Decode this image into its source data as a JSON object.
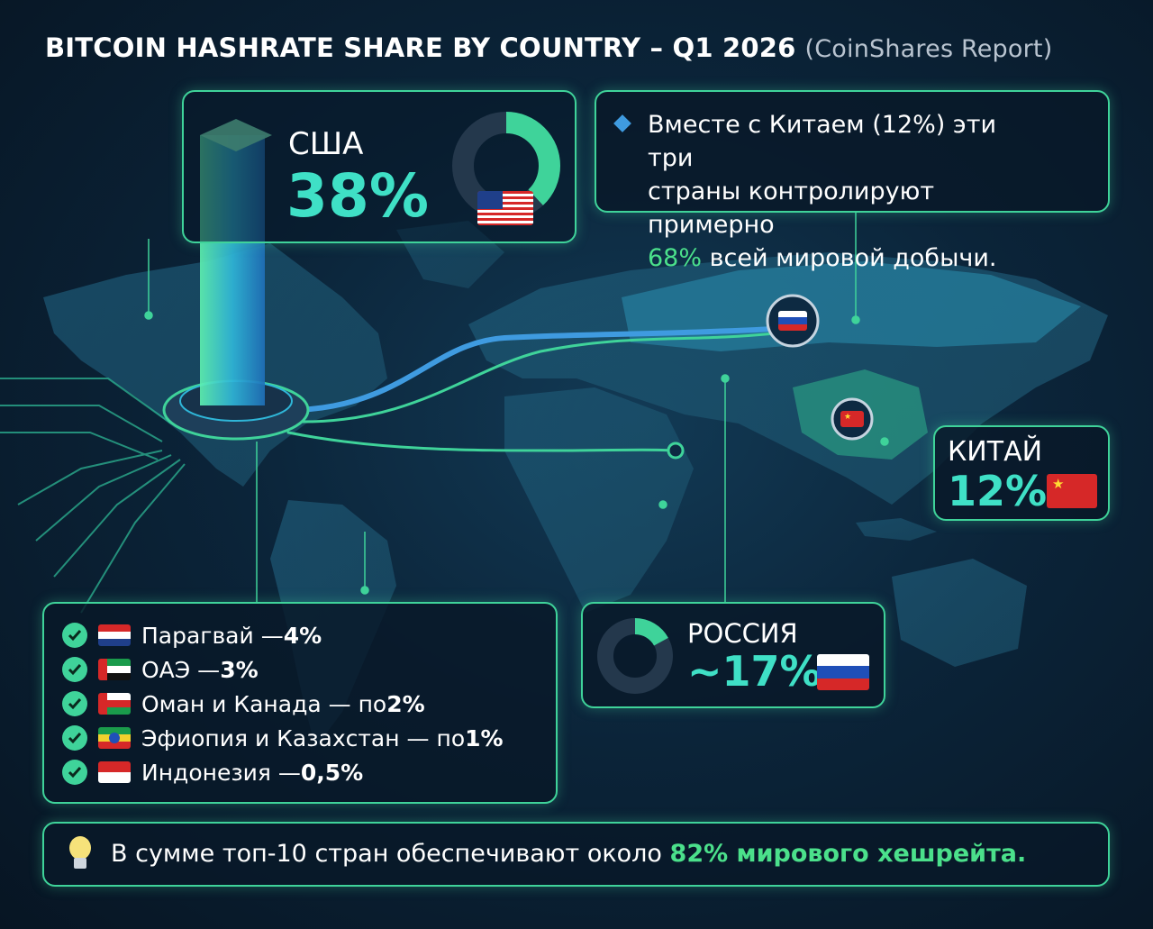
{
  "header": {
    "title": "BITCOIN HASHRATE SHARE BY COUNTRY – Q1 2026",
    "subtitle": "(CoinShares Report)"
  },
  "usa": {
    "name": "США",
    "value": "38%",
    "share": 38,
    "flag": "us-flag"
  },
  "china": {
    "name": "КИТАЙ",
    "value": "12%",
    "share": 12,
    "flag": "china-flag"
  },
  "russia": {
    "name": "РОССИЯ",
    "value": "~17%",
    "share": 17,
    "flag": "russia-flag"
  },
  "note": {
    "line1": "Вместе с Китаем (12%) эти три",
    "line2": "страны контролируют примерно",
    "highlight": "68%",
    "line3_rest": " всей мировой добычи."
  },
  "list": [
    {
      "label": "Парагвай — ",
      "value": "4%",
      "flag": "paraguay-flag"
    },
    {
      "label": "ОАЭ — ",
      "value": "3%",
      "flag": "uae-flag"
    },
    {
      "label": "Оман и Канада — по ",
      "value": "2%",
      "flag": "oman-flag"
    },
    {
      "label": "Эфиопия и Казахстан — по ",
      "value": "1%",
      "flag": "ethiopia-flag"
    },
    {
      "label": "Индонезия — ",
      "value": "0,5%",
      "flag": "indonesia-flag"
    }
  ],
  "footer": {
    "text": "В сумме топ-10 стран обеспечивают около ",
    "highlight": "82% мирового хешрейта."
  },
  "colors": {
    "accent_green": "#3fd39a",
    "value_teal": "#3fe0c6",
    "bg": "#081a2a",
    "highlight_green": "#4be08b"
  }
}
